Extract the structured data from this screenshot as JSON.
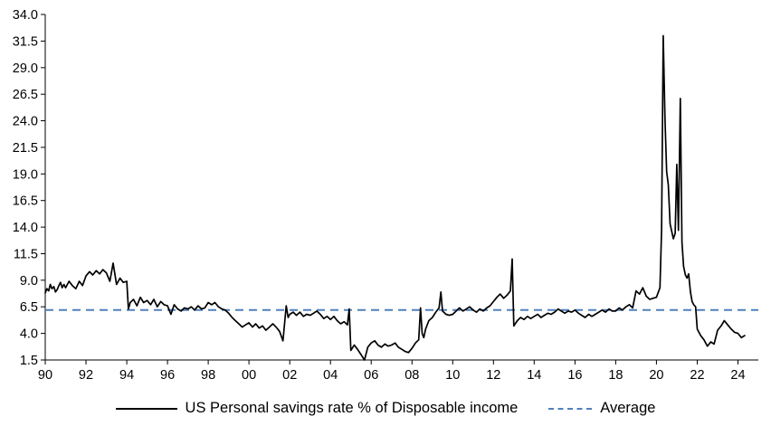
{
  "chart_data": {
    "type": "line",
    "title": "",
    "xlabel": "",
    "ylabel": "",
    "grid": false,
    "legend_position": "bottom",
    "ylim": [
      1.5,
      34.0
    ],
    "xlim": [
      1990,
      2025
    ],
    "y_ticks": [
      1.5,
      4.0,
      6.5,
      9.0,
      11.5,
      14.0,
      16.5,
      19.0,
      21.5,
      24.0,
      26.5,
      29.0,
      31.5,
      34.0
    ],
    "x_ticks": [
      {
        "label": "90",
        "year": 1990
      },
      {
        "label": "92",
        "year": 1992
      },
      {
        "label": "94",
        "year": 1994
      },
      {
        "label": "96",
        "year": 1996
      },
      {
        "label": "98",
        "year": 1998
      },
      {
        "label": "00",
        "year": 2000
      },
      {
        "label": "02",
        "year": 2002
      },
      {
        "label": "04",
        "year": 2004
      },
      {
        "label": "06",
        "year": 2006
      },
      {
        "label": "08",
        "year": 2008
      },
      {
        "label": "10",
        "year": 2010
      },
      {
        "label": "12",
        "year": 2012
      },
      {
        "label": "14",
        "year": 2014
      },
      {
        "label": "16",
        "year": 2016
      },
      {
        "label": "18",
        "year": 2018
      },
      {
        "label": "20",
        "year": 2020
      },
      {
        "label": "22",
        "year": 2022
      },
      {
        "label": "24",
        "year": 2024
      }
    ],
    "series": [
      {
        "name": "US Personal savings rate % of Disposable income",
        "color": "#000000",
        "style": "solid",
        "points": [
          [
            1990.0,
            7.8
          ],
          [
            1990.08,
            8.2
          ],
          [
            1990.17,
            8.0
          ],
          [
            1990.25,
            8.6
          ],
          [
            1990.33,
            8.2
          ],
          [
            1990.42,
            8.4
          ],
          [
            1990.5,
            7.9
          ],
          [
            1990.58,
            8.1
          ],
          [
            1990.67,
            8.5
          ],
          [
            1990.75,
            8.8
          ],
          [
            1990.83,
            8.3
          ],
          [
            1990.92,
            8.6
          ],
          [
            1991.0,
            8.3
          ],
          [
            1991.17,
            8.9
          ],
          [
            1991.33,
            8.5
          ],
          [
            1991.5,
            8.2
          ],
          [
            1991.67,
            8.9
          ],
          [
            1991.83,
            8.5
          ],
          [
            1992.0,
            9.4
          ],
          [
            1992.17,
            9.8
          ],
          [
            1992.33,
            9.5
          ],
          [
            1992.5,
            9.9
          ],
          [
            1992.67,
            9.6
          ],
          [
            1992.83,
            10.0
          ],
          [
            1993.0,
            9.7
          ],
          [
            1993.17,
            8.9
          ],
          [
            1993.33,
            10.6
          ],
          [
            1993.5,
            8.6
          ],
          [
            1993.67,
            9.2
          ],
          [
            1993.83,
            8.8
          ],
          [
            1994.0,
            8.9
          ],
          [
            1994.08,
            6.3
          ],
          [
            1994.17,
            6.9
          ],
          [
            1994.33,
            7.2
          ],
          [
            1994.5,
            6.6
          ],
          [
            1994.67,
            7.4
          ],
          [
            1994.83,
            6.9
          ],
          [
            1995.0,
            7.1
          ],
          [
            1995.17,
            6.7
          ],
          [
            1995.33,
            7.2
          ],
          [
            1995.5,
            6.5
          ],
          [
            1995.67,
            7.0
          ],
          [
            1995.83,
            6.7
          ],
          [
            1996.0,
            6.6
          ],
          [
            1996.17,
            5.8
          ],
          [
            1996.33,
            6.7
          ],
          [
            1996.5,
            6.3
          ],
          [
            1996.67,
            6.1
          ],
          [
            1996.83,
            6.4
          ],
          [
            1997.0,
            6.3
          ],
          [
            1997.17,
            6.5
          ],
          [
            1997.33,
            6.2
          ],
          [
            1997.5,
            6.6
          ],
          [
            1997.67,
            6.3
          ],
          [
            1997.83,
            6.4
          ],
          [
            1998.0,
            6.9
          ],
          [
            1998.17,
            6.7
          ],
          [
            1998.33,
            6.9
          ],
          [
            1998.5,
            6.5
          ],
          [
            1998.67,
            6.3
          ],
          [
            1998.83,
            6.2
          ],
          [
            1999.0,
            5.9
          ],
          [
            1999.17,
            5.5
          ],
          [
            1999.33,
            5.2
          ],
          [
            1999.5,
            4.9
          ],
          [
            1999.67,
            4.6
          ],
          [
            1999.83,
            4.8
          ],
          [
            2000.0,
            5.0
          ],
          [
            2000.17,
            4.6
          ],
          [
            2000.33,
            4.9
          ],
          [
            2000.5,
            4.5
          ],
          [
            2000.67,
            4.7
          ],
          [
            2000.83,
            4.3
          ],
          [
            2001.0,
            4.6
          ],
          [
            2001.17,
            4.9
          ],
          [
            2001.33,
            4.6
          ],
          [
            2001.5,
            4.2
          ],
          [
            2001.67,
            3.3
          ],
          [
            2001.83,
            6.6
          ],
          [
            2001.92,
            5.5
          ],
          [
            2002.0,
            5.8
          ],
          [
            2002.17,
            6.0
          ],
          [
            2002.33,
            5.7
          ],
          [
            2002.5,
            6.0
          ],
          [
            2002.67,
            5.6
          ],
          [
            2002.83,
            5.8
          ],
          [
            2003.0,
            5.7
          ],
          [
            2003.17,
            5.9
          ],
          [
            2003.33,
            6.1
          ],
          [
            2003.5,
            5.8
          ],
          [
            2003.67,
            5.4
          ],
          [
            2003.83,
            5.6
          ],
          [
            2004.0,
            5.3
          ],
          [
            2004.17,
            5.6
          ],
          [
            2004.33,
            5.2
          ],
          [
            2004.5,
            4.9
          ],
          [
            2004.67,
            5.1
          ],
          [
            2004.83,
            4.8
          ],
          [
            2004.92,
            6.3
          ],
          [
            2005.0,
            2.4
          ],
          [
            2005.17,
            2.9
          ],
          [
            2005.33,
            2.5
          ],
          [
            2005.5,
            2.0
          ],
          [
            2005.67,
            1.5
          ],
          [
            2005.83,
            2.7
          ],
          [
            2006.0,
            3.1
          ],
          [
            2006.17,
            3.3
          ],
          [
            2006.33,
            2.9
          ],
          [
            2006.5,
            2.7
          ],
          [
            2006.67,
            3.0
          ],
          [
            2006.83,
            2.8
          ],
          [
            2007.0,
            2.9
          ],
          [
            2007.17,
            3.1
          ],
          [
            2007.33,
            2.7
          ],
          [
            2007.5,
            2.5
          ],
          [
            2007.67,
            2.3
          ],
          [
            2007.83,
            2.2
          ],
          [
            2008.0,
            2.6
          ],
          [
            2008.17,
            3.1
          ],
          [
            2008.33,
            3.4
          ],
          [
            2008.42,
            6.4
          ],
          [
            2008.5,
            4.0
          ],
          [
            2008.58,
            3.6
          ],
          [
            2008.67,
            4.4
          ],
          [
            2008.83,
            5.2
          ],
          [
            2009.0,
            5.5
          ],
          [
            2009.17,
            6.0
          ],
          [
            2009.33,
            6.4
          ],
          [
            2009.42,
            7.9
          ],
          [
            2009.5,
            6.1
          ],
          [
            2009.67,
            5.8
          ],
          [
            2009.83,
            5.7
          ],
          [
            2010.0,
            5.8
          ],
          [
            2010.17,
            6.1
          ],
          [
            2010.33,
            6.4
          ],
          [
            2010.5,
            6.1
          ],
          [
            2010.67,
            6.3
          ],
          [
            2010.83,
            6.5
          ],
          [
            2011.0,
            6.2
          ],
          [
            2011.17,
            6.0
          ],
          [
            2011.33,
            6.3
          ],
          [
            2011.5,
            6.1
          ],
          [
            2011.67,
            6.4
          ],
          [
            2011.83,
            6.6
          ],
          [
            2012.0,
            7.0
          ],
          [
            2012.17,
            7.4
          ],
          [
            2012.33,
            7.7
          ],
          [
            2012.5,
            7.3
          ],
          [
            2012.67,
            7.6
          ],
          [
            2012.83,
            8.0
          ],
          [
            2012.92,
            11.0
          ],
          [
            2013.0,
            4.7
          ],
          [
            2013.17,
            5.2
          ],
          [
            2013.33,
            5.5
          ],
          [
            2013.5,
            5.3
          ],
          [
            2013.67,
            5.6
          ],
          [
            2013.83,
            5.4
          ],
          [
            2014.0,
            5.6
          ],
          [
            2014.17,
            5.8
          ],
          [
            2014.33,
            5.5
          ],
          [
            2014.5,
            5.7
          ],
          [
            2014.67,
            5.9
          ],
          [
            2014.83,
            5.8
          ],
          [
            2015.0,
            6.0
          ],
          [
            2015.17,
            6.3
          ],
          [
            2015.33,
            6.1
          ],
          [
            2015.5,
            5.9
          ],
          [
            2015.67,
            6.1
          ],
          [
            2015.83,
            6.0
          ],
          [
            2016.0,
            6.2
          ],
          [
            2016.17,
            5.9
          ],
          [
            2016.33,
            5.7
          ],
          [
            2016.5,
            5.5
          ],
          [
            2016.67,
            5.8
          ],
          [
            2016.83,
            5.6
          ],
          [
            2017.0,
            5.8
          ],
          [
            2017.17,
            6.0
          ],
          [
            2017.33,
            6.2
          ],
          [
            2017.5,
            6.0
          ],
          [
            2017.67,
            6.3
          ],
          [
            2017.83,
            6.1
          ],
          [
            2018.0,
            6.1
          ],
          [
            2018.17,
            6.4
          ],
          [
            2018.33,
            6.2
          ],
          [
            2018.5,
            6.5
          ],
          [
            2018.67,
            6.7
          ],
          [
            2018.83,
            6.4
          ],
          [
            2019.0,
            8.0
          ],
          [
            2019.17,
            7.7
          ],
          [
            2019.33,
            8.3
          ],
          [
            2019.5,
            7.5
          ],
          [
            2019.67,
            7.2
          ],
          [
            2019.83,
            7.3
          ],
          [
            2020.0,
            7.4
          ],
          [
            2020.17,
            8.3
          ],
          [
            2020.25,
            13.8
          ],
          [
            2020.33,
            32.0
          ],
          [
            2020.42,
            24.0
          ],
          [
            2020.5,
            19.2
          ],
          [
            2020.58,
            18.0
          ],
          [
            2020.67,
            14.3
          ],
          [
            2020.75,
            13.6
          ],
          [
            2020.83,
            12.9
          ],
          [
            2020.92,
            13.4
          ],
          [
            2021.0,
            19.9
          ],
          [
            2021.08,
            13.7
          ],
          [
            2021.17,
            26.1
          ],
          [
            2021.25,
            12.6
          ],
          [
            2021.33,
            10.3
          ],
          [
            2021.42,
            9.5
          ],
          [
            2021.5,
            9.2
          ],
          [
            2021.58,
            9.6
          ],
          [
            2021.67,
            7.9
          ],
          [
            2021.75,
            7.0
          ],
          [
            2021.83,
            6.7
          ],
          [
            2021.92,
            6.5
          ],
          [
            2022.0,
            4.4
          ],
          [
            2022.17,
            3.8
          ],
          [
            2022.33,
            3.4
          ],
          [
            2022.5,
            2.8
          ],
          [
            2022.67,
            3.2
          ],
          [
            2022.83,
            3.0
          ],
          [
            2023.0,
            4.3
          ],
          [
            2023.17,
            4.7
          ],
          [
            2023.33,
            5.2
          ],
          [
            2023.5,
            4.8
          ],
          [
            2023.67,
            4.4
          ],
          [
            2023.83,
            4.1
          ],
          [
            2024.0,
            4.0
          ],
          [
            2024.17,
            3.6
          ],
          [
            2024.33,
            3.8
          ]
        ]
      },
      {
        "name": "Average",
        "color": "#4F81BD",
        "style": "dashed",
        "value": 6.2
      }
    ]
  }
}
